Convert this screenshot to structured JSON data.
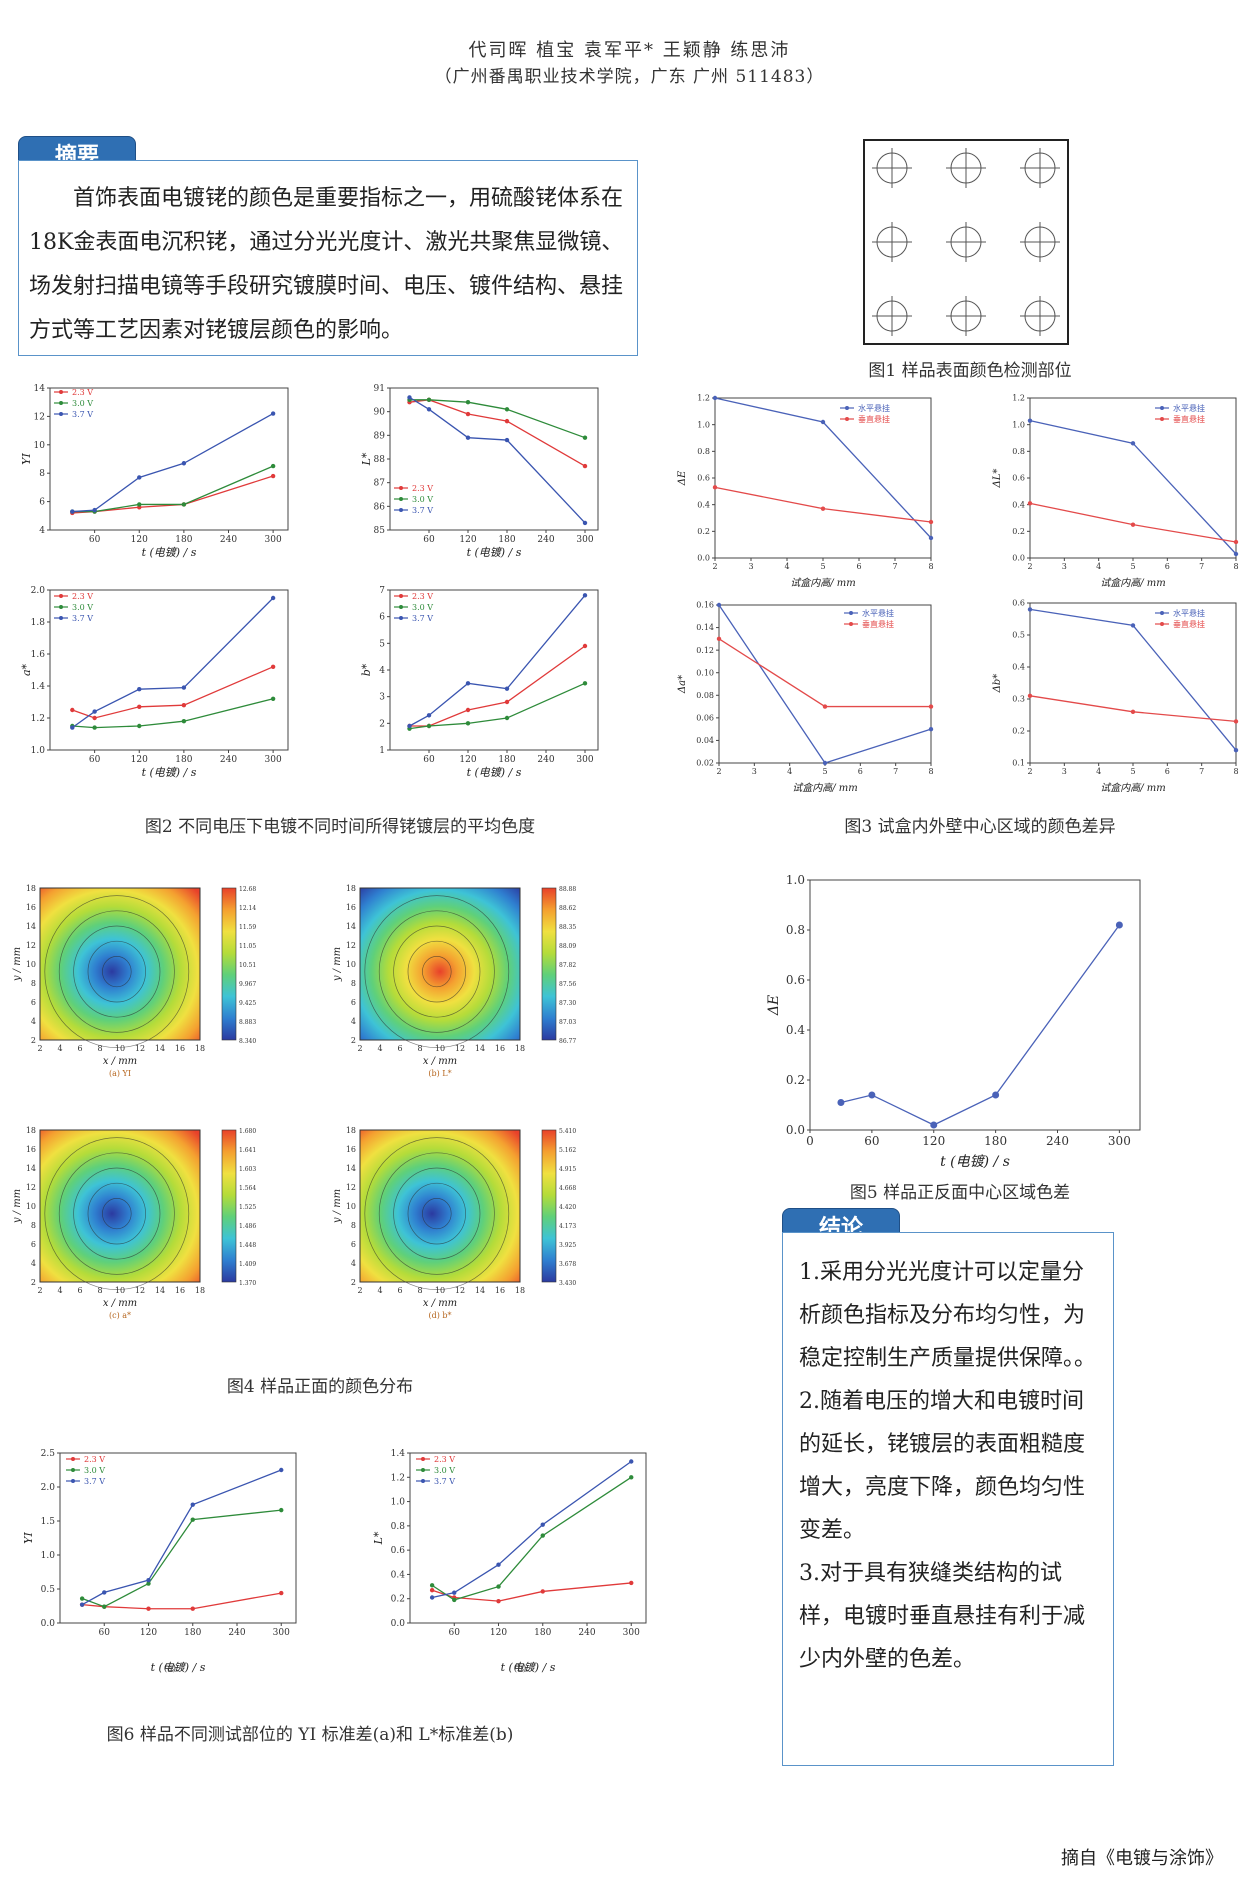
{
  "header": {
    "authors": "代司晖 植宝 袁军平* 王颖静 练思沛",
    "affiliation": "（广州番禺职业技术学院，广东 广州 511483）"
  },
  "abstract": {
    "tag": "摘要",
    "text": "首饰表面电镀铑的颜色是重要指标之一，用硫酸铑体系在 18K金表面电沉积铑，通过分光光度计、激光共聚焦显微镜、场发射扫描电镜等手段研究镀膜时间、电压、镀件结构、悬挂方式等工艺因素对铑镀层颜色的影响。"
  },
  "conclusion": {
    "tag": "结论",
    "items": [
      "1.采用分光光度计可以定量分析颜色指标及分布均匀性，为稳定控制生产质量提供保障。。",
      "2.随着电压的增大和电镀时间的延长，铑镀层的表面粗糙度增大，亮度下降，颜色均匀性变差。",
      "3.对于具有狭缝类结构的试样，电镀时垂直悬挂有利于减少内外壁的色差。"
    ]
  },
  "captions": {
    "fig1": "图1 样品表面颜色检测部位",
    "fig2": "图2 不同电压下电镀不同时间所得铑镀层的平均色度",
    "fig3": "图3 试盒内外壁中心区域的颜色差异",
    "fig4": "图4 样品正面的颜色分布",
    "fig5": "图5 样品正反面中心区域色差",
    "fig6": "图6 样品不同测试部位的 YI 标准差(a)和 L*标准差(b)"
  },
  "source": "摘自《电镀与涂饰》",
  "colors": {
    "v23": "#e03a3a",
    "v30": "#2e8b3a",
    "v37": "#3a55b0",
    "accent": "#2f6fb3",
    "h": "#4a62b8",
    "v": "#e34a4a"
  },
  "fig2_axis": {
    "xlabel": "t (电镀) / s",
    "ticks": [
      "60",
      "120",
      "180",
      "240",
      "300"
    ]
  },
  "fig3_axis": {
    "xlabel": "试盒内高/ mm"
  },
  "fig4_panels": [
    "(a) YI",
    "(b) L*",
    "(c) a*",
    "(d) b*"
  ],
  "fig4_axis": {
    "xlabel": "x / mm",
    "ylabel": "y / mm"
  },
  "fig6_panels": [
    "(a)",
    "(b)"
  ],
  "chart_data": [
    {
      "type": "line",
      "title": "",
      "ylabel": "YI",
      "xlabel": "t (电镀) / s",
      "ylim": [
        4,
        14
      ],
      "x": [
        30,
        60,
        120,
        180,
        300
      ],
      "series": [
        {
          "name": "2.3 V",
          "values": [
            5.2,
            5.3,
            5.6,
            5.8,
            7.8
          ]
        },
        {
          "name": "3.0 V",
          "values": [
            5.3,
            5.3,
            5.8,
            5.8,
            8.5
          ]
        },
        {
          "name": "3.7 V",
          "values": [
            5.3,
            5.4,
            7.7,
            8.7,
            12.2
          ]
        }
      ]
    },
    {
      "type": "line",
      "title": "",
      "ylabel": "L*",
      "xlabel": "t (电镀) / s",
      "ylim": [
        85,
        91
      ],
      "x": [
        30,
        60,
        120,
        180,
        300
      ],
      "series": [
        {
          "name": "2.3 V",
          "values": [
            90.4,
            90.5,
            89.9,
            89.6,
            87.7
          ]
        },
        {
          "name": "3.0 V",
          "values": [
            90.5,
            90.5,
            90.4,
            90.1,
            88.9
          ]
        },
        {
          "name": "3.7 V",
          "values": [
            90.6,
            90.1,
            88.9,
            88.8,
            85.3
          ]
        }
      ]
    },
    {
      "type": "line",
      "title": "",
      "ylabel": "a*",
      "xlabel": "t (电镀) / s",
      "ylim": [
        1.0,
        2.0
      ],
      "x": [
        30,
        60,
        120,
        180,
        300
      ],
      "series": [
        {
          "name": "2.3 V",
          "values": [
            1.25,
            1.2,
            1.27,
            1.28,
            1.52
          ]
        },
        {
          "name": "3.0 V",
          "values": [
            1.15,
            1.14,
            1.15,
            1.18,
            1.32
          ]
        },
        {
          "name": "3.7 V",
          "values": [
            1.14,
            1.24,
            1.38,
            1.39,
            1.95
          ]
        }
      ]
    },
    {
      "type": "line",
      "title": "",
      "ylabel": "b*",
      "xlabel": "t (电镀) / s",
      "ylim": [
        1,
        7
      ],
      "x": [
        30,
        60,
        120,
        180,
        300
      ],
      "series": [
        {
          "name": "2.3 V",
          "values": [
            1.9,
            1.9,
            2.5,
            2.8,
            4.9
          ]
        },
        {
          "name": "3.0 V",
          "values": [
            1.8,
            1.9,
            2.0,
            2.2,
            3.5
          ]
        },
        {
          "name": "3.7 V",
          "values": [
            1.9,
            2.3,
            3.5,
            3.3,
            6.8
          ]
        }
      ]
    },
    {
      "type": "line",
      "title": "",
      "ylabel": "ΔE",
      "xlabel": "试盒内高/ mm",
      "ylim": [
        0,
        1.2
      ],
      "x": [
        2,
        5,
        8
      ],
      "series": [
        {
          "name": "水平悬挂",
          "values": [
            1.2,
            1.02,
            0.15
          ]
        },
        {
          "name": "垂直悬挂",
          "values": [
            0.53,
            0.37,
            0.27
          ]
        }
      ]
    },
    {
      "type": "line",
      "title": "",
      "ylabel": "ΔL*",
      "xlabel": "试盒内高/ mm",
      "ylim": [
        0,
        1.2
      ],
      "x": [
        2,
        5,
        8
      ],
      "series": [
        {
          "name": "水平悬挂",
          "values": [
            1.03,
            0.86,
            0.03
          ]
        },
        {
          "name": "垂直悬挂",
          "values": [
            0.41,
            0.25,
            0.12
          ]
        }
      ]
    },
    {
      "type": "line",
      "title": "",
      "ylabel": "Δa*",
      "xlabel": "试盒内高/ mm",
      "ylim": [
        0.02,
        0.16
      ],
      "x": [
        2,
        5,
        8
      ],
      "series": [
        {
          "name": "水平悬挂",
          "values": [
            0.16,
            0.02,
            0.05
          ]
        },
        {
          "name": "垂直悬挂",
          "values": [
            0.13,
            0.07,
            0.07
          ]
        }
      ]
    },
    {
      "type": "line",
      "title": "",
      "ylabel": "Δb*",
      "xlabel": "试盒内高/ mm",
      "ylim": [
        0.1,
        0.6
      ],
      "x": [
        2,
        5,
        8
      ],
      "series": [
        {
          "name": "水平悬挂",
          "values": [
            0.58,
            0.53,
            0.14
          ]
        },
        {
          "name": "垂直悬挂",
          "values": [
            0.31,
            0.26,
            0.23
          ]
        }
      ]
    },
    {
      "type": "line",
      "title": "",
      "ylabel": "ΔE",
      "xlabel": "t (电镀) / s",
      "ylim": [
        0,
        1.0
      ],
      "x": [
        30,
        60,
        120,
        180,
        300
      ],
      "series": [
        {
          "values": [
            0.11,
            0.14,
            0.02,
            0.14,
            0.82
          ]
        }
      ]
    },
    {
      "type": "line",
      "title": "",
      "ylabel": "YI",
      "xlabel": "t (电镀) / s",
      "ylim": [
        0,
        2.5
      ],
      "x": [
        30,
        60,
        120,
        180,
        300
      ],
      "series": [
        {
          "name": "2.3 V",
          "values": [
            0.27,
            0.24,
            0.21,
            0.21,
            0.44
          ]
        },
        {
          "name": "3.0 V",
          "values": [
            0.36,
            0.24,
            0.58,
            1.52,
            1.66
          ]
        },
        {
          "name": "3.7 V",
          "values": [
            0.27,
            0.45,
            0.63,
            1.74,
            2.25
          ]
        }
      ]
    },
    {
      "type": "line",
      "title": "",
      "ylabel": "L*",
      "xlabel": "t (电镀) / s",
      "ylim": [
        0,
        1.4
      ],
      "x": [
        30,
        60,
        120,
        180,
        300
      ],
      "series": [
        {
          "name": "2.3 V",
          "values": [
            0.27,
            0.21,
            0.18,
            0.26,
            0.33
          ]
        },
        {
          "name": "3.0 V",
          "values": [
            0.31,
            0.19,
            0.3,
            0.72,
            1.2
          ]
        },
        {
          "name": "3.7 V",
          "values": [
            0.21,
            0.25,
            0.48,
            0.81,
            1.33
          ]
        }
      ]
    },
    {
      "type": "heatmap",
      "title": "",
      "xlabel": "x / mm",
      "ylabel": "y / mm",
      "panel": "(a) YI",
      "colorbar": [
        "12.68",
        "12.14",
        "11.59",
        "11.05",
        "10.51",
        "9.967",
        "9.425",
        "8.883",
        "8.340"
      ]
    },
    {
      "type": "heatmap",
      "title": "",
      "xlabel": "x / mm",
      "ylabel": "y / mm",
      "panel": "(b) L*",
      "colorbar": [
        "88.88",
        "88.62",
        "88.35",
        "88.09",
        "87.82",
        "87.56",
        "87.30",
        "87.03",
        "86.77"
      ]
    },
    {
      "type": "heatmap",
      "title": "",
      "xlabel": "x / mm",
      "ylabel": "y / mm",
      "panel": "(c) a*",
      "colorbar": [
        "1.680",
        "1.641",
        "1.603",
        "1.564",
        "1.525",
        "1.486",
        "1.448",
        "1.409",
        "1.370"
      ]
    },
    {
      "type": "heatmap",
      "title": "",
      "xlabel": "x / mm",
      "ylabel": "y / mm",
      "panel": "(d) b*",
      "colorbar": [
        "5.410",
        "5.162",
        "4.915",
        "4.668",
        "4.420",
        "4.173",
        "3.925",
        "3.678",
        "3.430"
      ]
    }
  ]
}
